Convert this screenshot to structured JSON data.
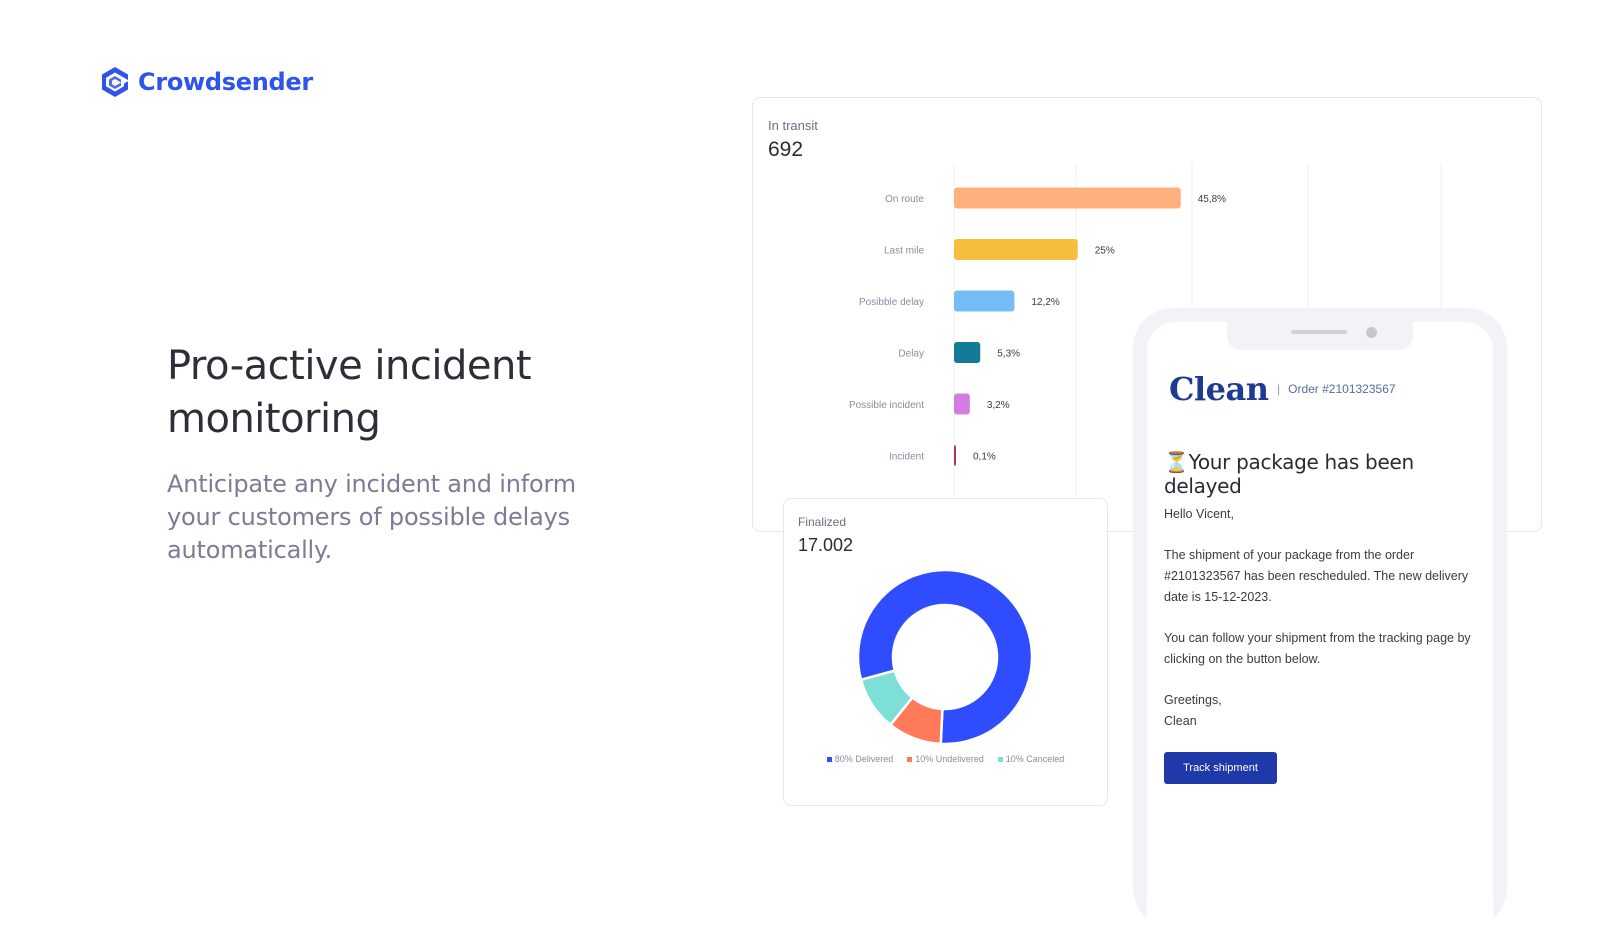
{
  "brand": {
    "name": "Crowdsender",
    "icon": "crowdsender-logo-icon",
    "color": "#2f54eb"
  },
  "hero": {
    "title": "Pro-active incident monitoring",
    "subtitle": "Anticipate any incident and inform your customers of possible delays automatically."
  },
  "transit": {
    "label": "In transit",
    "value": "692",
    "chart_data": {
      "type": "bar",
      "orientation": "horizontal",
      "categories": [
        "On route",
        "Last mile",
        "Posibble delay",
        "Delay",
        "Possible incident",
        "Incident"
      ],
      "values": [
        45.8,
        25,
        12.2,
        5.3,
        3.2,
        0.1
      ],
      "value_labels": [
        "45,8%",
        "25%",
        "12,2%",
        "5,3%",
        "3,2%",
        "0,1%"
      ],
      "colors": [
        "#ffb07c",
        "#f7bd3c",
        "#77bdf5",
        "#137a98",
        "#d27ee0",
        "#b8324a"
      ],
      "grid": true
    }
  },
  "finalized": {
    "label": "Finalized",
    "value": "17.002",
    "chart_data": {
      "type": "pie",
      "donut": true,
      "categories": [
        "Delivered",
        "Undelivered",
        "Canceled"
      ],
      "values": [
        80,
        10,
        10
      ],
      "legend": [
        "80% Delivered",
        "10% Undelivered",
        "10% Canceled"
      ],
      "colors": [
        "#2f4cff",
        "#ff7a59",
        "#7ddfd6"
      ],
      "legend_position": "bottom"
    }
  },
  "email": {
    "brand": "Clean",
    "order_label": "Order #2101323567",
    "title_icon": "⏳",
    "title": "Your package has been delayed",
    "greeting": "Hello Vicent,",
    "body1": "The shipment of your package from the order #2101323567 has been rescheduled. The new delivery date is 15-12-2023.",
    "body2": "You can follow your shipment from the tracking page by clicking on the button below.",
    "signoff": "Greetings,",
    "signature": "Clean",
    "button_label": "Track shipment"
  }
}
